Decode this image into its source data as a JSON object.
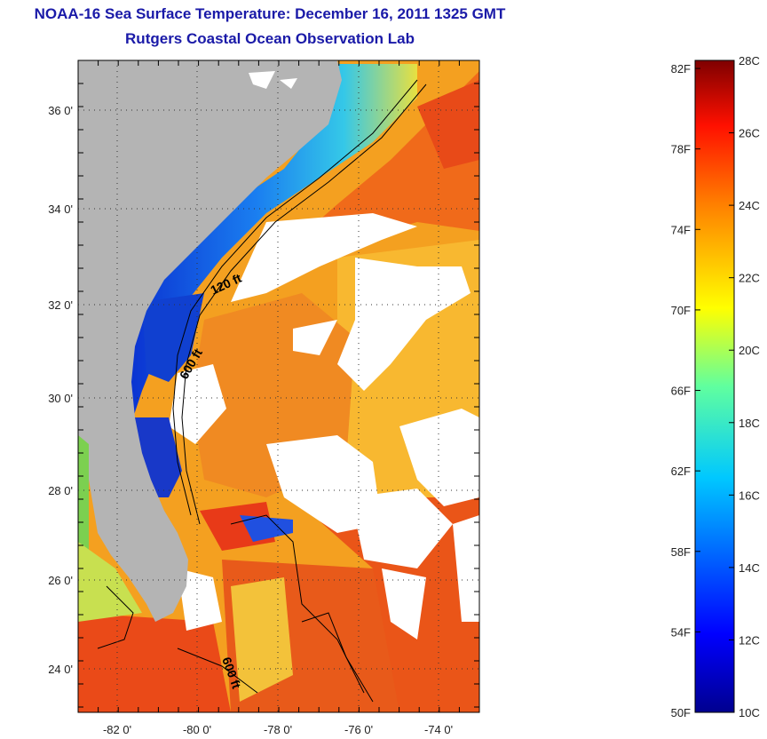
{
  "header": {
    "title": "NOAA-16 Sea Surface Temperature:  December 16, 2011 1325 GMT",
    "subtitle": "Rutgers Coastal Ocean Observation Lab"
  },
  "map": {
    "lat_ticks": [
      "36 0'",
      "34 0'",
      "32 0'",
      "30 0'",
      "28 0'",
      "26 0'",
      "24 0'"
    ],
    "lon_ticks": [
      "-82 0'",
      "-80 0'",
      "-78 0'",
      "-76 0'",
      "-74 0'"
    ],
    "contour_labels": [
      "120 ft",
      "600 ft",
      "600 ft"
    ],
    "colors": {
      "land": "#b4b4b4",
      "cloud": "#ffffff",
      "warm": "#f07a1c",
      "mid": "#f9b82a",
      "cold": "#1030c8",
      "cyan": "#29c2e0"
    }
  },
  "colorbar": {
    "fahrenheit": [
      "82F",
      "78F",
      "74F",
      "70F",
      "66F",
      "62F",
      "58F",
      "54F",
      "50F"
    ],
    "celsius": [
      "28C",
      "26C",
      "24C",
      "22C",
      "20C",
      "18C",
      "16C",
      "14C",
      "12C",
      "10C"
    ],
    "range_c": [
      10,
      28
    ],
    "range_f": [
      50,
      82.4
    ]
  }
}
